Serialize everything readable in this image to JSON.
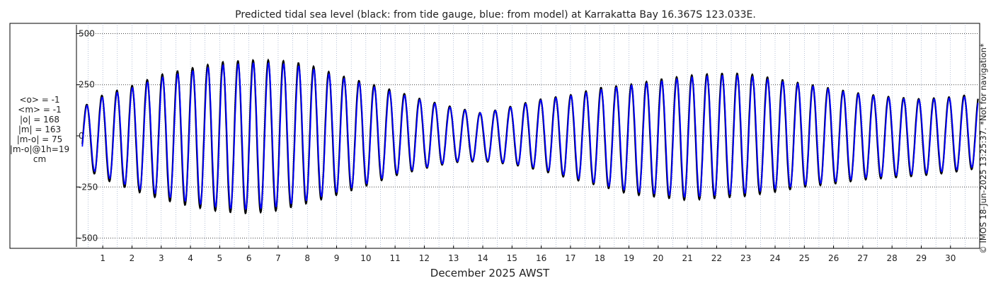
{
  "chart_data": {
    "type": "line",
    "title": "Predicted tidal sea level (black: from tide gauge, blue: from model) at Karrakatta Bay 16.367S 123.033E.",
    "xlabel": "December 2025 AWST",
    "ylabel": "",
    "units": "cm",
    "ylim": [
      -550,
      550
    ],
    "xlim": [
      0.1,
      30.95
    ],
    "y_ticks": [
      500,
      250,
      0,
      -250,
      -500
    ],
    "x_ticks": [
      1,
      2,
      3,
      4,
      5,
      6,
      7,
      8,
      9,
      10,
      11,
      12,
      13,
      14,
      15,
      16,
      17,
      18,
      19,
      20,
      21,
      22,
      23,
      24,
      25,
      26,
      27,
      28,
      29,
      30
    ],
    "grid": true,
    "series": [
      {
        "name": "from tide gauge",
        "color": "#000000",
        "approx_daily_extremes": {
          "day": [
            0.3,
            1,
            2,
            3,
            4,
            5,
            6,
            7,
            8,
            9,
            10,
            11,
            12,
            13,
            14,
            15,
            16,
            17,
            18,
            19,
            20,
            21,
            22,
            23,
            24,
            25,
            26,
            27,
            28,
            29,
            30,
            30.9
          ],
          "high": [
            140,
            200,
            245,
            300,
            330,
            360,
            370,
            370,
            350,
            300,
            260,
            220,
            175,
            140,
            110,
            145,
            180,
            200,
            235,
            250,
            275,
            295,
            305,
            305,
            280,
            255,
            230,
            205,
            190,
            180,
            190,
            205
          ],
          "low": [
            -150,
            -210,
            -265,
            -310,
            -345,
            -370,
            -380,
            -365,
            -330,
            -290,
            -245,
            -195,
            -160,
            -130,
            -125,
            -140,
            -170,
            -210,
            -245,
            -285,
            -300,
            -315,
            -305,
            -295,
            -275,
            -250,
            -235,
            -215,
            -205,
            -195,
            -180,
            -160
          ]
        }
      },
      {
        "name": "from model",
        "color": "#0000ff",
        "approx_daily_extremes": {
          "day": [
            0.3,
            1,
            2,
            3,
            4,
            5,
            6,
            7,
            8,
            9,
            10,
            11,
            12,
            13,
            14,
            15,
            16,
            17,
            18,
            19,
            20,
            21,
            22,
            23,
            24,
            25,
            26,
            27,
            28,
            29,
            30,
            30.9
          ],
          "high": [
            135,
            190,
            235,
            285,
            315,
            345,
            355,
            355,
            335,
            290,
            250,
            210,
            170,
            135,
            110,
            140,
            175,
            195,
            225,
            245,
            265,
            285,
            295,
            295,
            270,
            250,
            225,
            200,
            185,
            175,
            185,
            195
          ],
          "low": [
            -140,
            -195,
            -250,
            -290,
            -325,
            -350,
            -360,
            -345,
            -315,
            -275,
            -235,
            -185,
            -155,
            -125,
            -120,
            -135,
            -160,
            -200,
            -235,
            -270,
            -285,
            -300,
            -290,
            -280,
            -260,
            -240,
            -225,
            -205,
            -195,
            -185,
            -170,
            -150
          ]
        }
      }
    ]
  },
  "stats": {
    "mean_obs": "<o> = -1",
    "mean_model": "<m> = -1",
    "abs_obs": "|o| = 168",
    "abs_model": "|m| = 163",
    "abs_diff": "|m-o| = 75",
    "abs_diff_1h": "|m-o|@1h=19",
    "units": "cm"
  },
  "credit": "© IMOS 18-Jun-2025 13:25:37. *Not for navigation*"
}
